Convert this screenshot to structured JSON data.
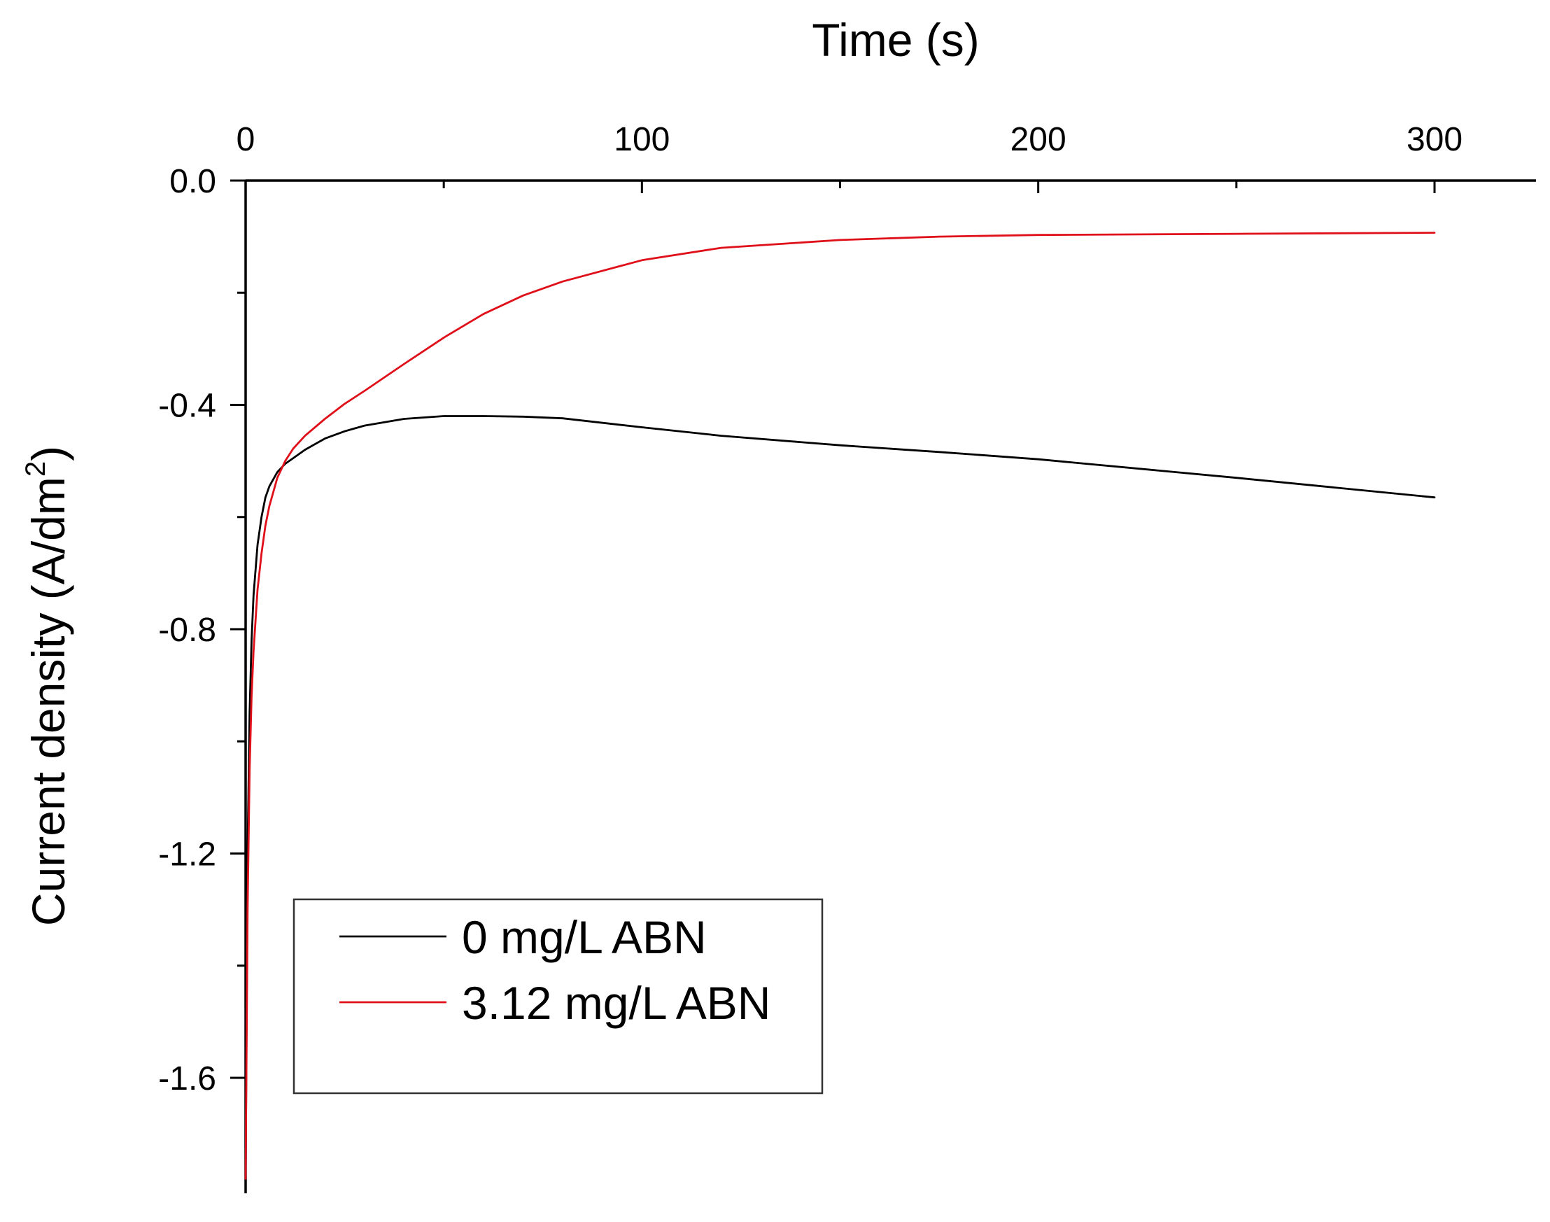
{
  "chart_data": {
    "type": "line",
    "xlabel": "Time (s)",
    "ylabel": "Current density (A/dm",
    "ylabel_sup": "2",
    "ylabel_close": ")",
    "xlim": [
      0,
      325
    ],
    "ylim": [
      -1.8,
      0.0
    ],
    "x_axis_position": "top",
    "grid": false,
    "legend_position": "bottom-left",
    "x_ticks": [
      {
        "value": 0,
        "label": "0"
      },
      {
        "value": 100,
        "label": "100"
      },
      {
        "value": 200,
        "label": "200"
      },
      {
        "value": 300,
        "label": "300"
      }
    ],
    "x_minor_ticks": [
      50,
      150,
      250
    ],
    "y_ticks": [
      {
        "value": 0.0,
        "label": "0.0"
      },
      {
        "value": -0.4,
        "label": "-0.4"
      },
      {
        "value": -0.8,
        "label": "-0.8"
      },
      {
        "value": -1.2,
        "label": "-1.2"
      },
      {
        "value": -1.6,
        "label": "-1.6"
      }
    ],
    "y_minor_ticks": [
      -0.2,
      -0.6,
      -1.0,
      -1.4
    ],
    "series": [
      {
        "name": "0 mg/L ABN",
        "color": "#000000",
        "x": [
          0,
          0.5,
          1,
          1.5,
          2,
          3,
          4,
          5,
          6,
          8,
          10,
          12,
          15,
          20,
          25,
          30,
          40,
          50,
          60,
          70,
          80,
          100,
          120,
          150,
          175,
          200,
          250,
          300
        ],
        "y": [
          -1.78,
          -1.2,
          -0.95,
          -0.82,
          -0.74,
          -0.65,
          -0.6,
          -0.565,
          -0.545,
          -0.52,
          -0.505,
          -0.495,
          -0.48,
          -0.46,
          -0.447,
          -0.437,
          -0.425,
          -0.42,
          -0.42,
          -0.421,
          -0.424,
          -0.44,
          -0.455,
          -0.472,
          -0.484,
          -0.497,
          -0.53,
          -0.565
        ]
      },
      {
        "name": "3.12 mg/L ABN",
        "color": "#e0101a",
        "x": [
          0,
          0.5,
          1,
          1.5,
          2,
          3,
          4,
          5,
          6,
          8,
          10,
          12,
          15,
          20,
          25,
          30,
          40,
          50,
          60,
          70,
          80,
          100,
          120,
          150,
          175,
          200,
          250,
          300
        ],
        "y": [
          -1.78,
          -1.3,
          -1.05,
          -0.92,
          -0.84,
          -0.73,
          -0.665,
          -0.615,
          -0.58,
          -0.53,
          -0.5,
          -0.478,
          -0.455,
          -0.425,
          -0.398,
          -0.375,
          -0.327,
          -0.28,
          -0.238,
          -0.205,
          -0.18,
          -0.142,
          -0.12,
          -0.106,
          -0.1,
          -0.097,
          -0.095,
          -0.093
        ]
      }
    ]
  }
}
